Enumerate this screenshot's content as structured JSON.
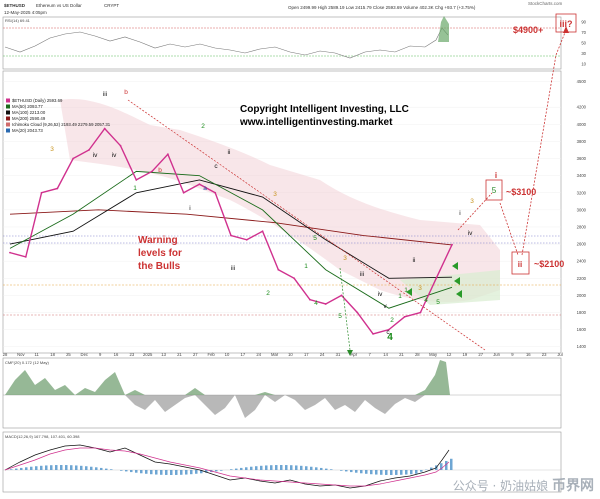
{
  "header": {
    "symbol": "$ETHUSD",
    "name": "Ethereum vs US Dollar",
    "source": "CRYPT",
    "date_line": "12-May-2025 4:05pm",
    "quote_line": "Open 2499.99 High 2589.19 Low 2415.79 Close 2593.69 Volume 402.3K Chg +93.7 (+3.75%)",
    "rsi_label": "RSI(14) 69.41",
    "logo": "StockCharts.com"
  },
  "legend_lines": [
    "$ETHUSD (Daily) 2593.69",
    "MA(50) 2093.77",
    "MA(100) 2213.00",
    "MA(200) 2590.49",
    "Ichimoku Cloud (9,26,52) 2193.49 2279.59 2057.31",
    "MA(20) 2043.73"
  ],
  "annotations": {
    "copyright": "Copyright Intelligent Investing, LLC",
    "website": "www.intelligentinvesting.market",
    "warning": [
      "Warning",
      "levels for",
      "the Bulls"
    ],
    "target_4900": "$4900+",
    "target_3100": "~$3100",
    "target_2100": "~$2100",
    "wave_iii_top": "iii?",
    "wave_5": "5",
    "wave_i": "i",
    "wave_ii": "ii"
  },
  "lower_panels": {
    "cmf_label": "CMF(20) 0.172 (12 May)",
    "macd_label": "MACD(12,26,9) 167.798, 107.401, 60.398"
  },
  "watermark": "公众号 · 奶油姑娘",
  "watermark2": "币界网",
  "chart_data": {
    "type": "line",
    "title": "$ETHUSD (Daily) 2593.69",
    "xlabel": "",
    "ylabel": "",
    "x_tick_labels": [
      "28",
      "Nov",
      "11",
      "18",
      "25",
      "Dec",
      "9",
      "16",
      "23",
      "2025",
      "13",
      "21",
      "27",
      "Feb",
      "10",
      "17",
      "24",
      "Mar",
      "10",
      "17",
      "24",
      "31",
      "Apr",
      "7",
      "14",
      "21",
      "28",
      "May",
      "12",
      "19",
      "27",
      "Jun",
      "9",
      "16",
      "23",
      "Jul"
    ],
    "y_tick_labels": [
      "4500",
      "4200",
      "4000",
      "3800",
      "3600",
      "3400",
      "3200",
      "3000",
      "2800",
      "2600",
      "2400",
      "2200",
      "2000",
      "1800",
      "1600",
      "1400"
    ],
    "ylim": [
      1350,
      4600
    ],
    "rsi_ticks": [
      "90",
      "70",
      "50",
      "30",
      "10"
    ],
    "wave_labels": [
      "iii",
      "b",
      "2",
      "3",
      "iv",
      "iv",
      "b",
      "a",
      "c",
      "ii",
      "i",
      "1",
      "3",
      "5",
      "1",
      "2",
      "iii",
      "3",
      "4",
      "5",
      "iii",
      "iv",
      "v",
      "4",
      "1",
      "2",
      "c",
      "3",
      "iv",
      "ii",
      "i",
      "1",
      "3",
      "4",
      "5"
    ],
    "series": [
      {
        "name": "$ETHUSD (Daily) 2593.69",
        "color": "#d0318e",
        "x": [
          "Oct 28",
          "Nov 4",
          "Nov 11",
          "Nov 18",
          "Nov 25",
          "Dec 2",
          "Dec 9",
          "Dec 16",
          "Dec 23",
          "Dec 30",
          "Jan 6",
          "Jan 13",
          "Jan 20",
          "Jan 27",
          "Feb 3",
          "Feb 10",
          "Feb 17",
          "Feb 24",
          "Mar 3",
          "Mar 10",
          "Mar 17",
          "Mar 24",
          "Mar 31",
          "Apr 7",
          "Apr 14",
          "Apr 21",
          "Apr 28",
          "May 5",
          "May 12"
        ],
        "values": [
          2500,
          2450,
          3200,
          3250,
          3600,
          3700,
          3950,
          3750,
          3350,
          3450,
          3650,
          3200,
          3300,
          3200,
          2700,
          2650,
          2750,
          2300,
          2200,
          1950,
          1900,
          2000,
          1800,
          1550,
          1600,
          1750,
          1800,
          2200,
          2593
        ]
      },
      {
        "name": "MA(50) 2093.77",
        "color": "#1a6b1a",
        "x": [
          "Oct 28",
          "Nov 25",
          "Dec 23",
          "Jan 20",
          "Feb 17",
          "Mar 17",
          "Apr 14",
          "May 12"
        ],
        "values": [
          2550,
          2950,
          3450,
          3400,
          3000,
          2300,
          1850,
          2094
        ]
      },
      {
        "name": "MA(100) 2213.00",
        "color": "#111111",
        "x": [
          "Oct 28",
          "Nov 25",
          "Dec 23",
          "Jan 20",
          "Feb 17",
          "Mar 17",
          "Apr 14",
          "May 12"
        ],
        "values": [
          2600,
          2750,
          3200,
          3350,
          3150,
          2650,
          2200,
          2213
        ]
      },
      {
        "name": "MA(200) 2590.49",
        "color": "#8b1a1a",
        "x": [
          "Oct 28",
          "Dec 23",
          "Feb 17",
          "Mar 17",
          "Apr 14",
          "May 12"
        ],
        "values": [
          2950,
          3000,
          2950,
          2850,
          2700,
          2590
        ]
      }
    ],
    "lower_panels": {
      "cmf_label": "CMF(20) 0.172 (12 May)",
      "macd_label": "MACD(12,26,9) 167.798, 107.401, 60.398"
    }
  }
}
